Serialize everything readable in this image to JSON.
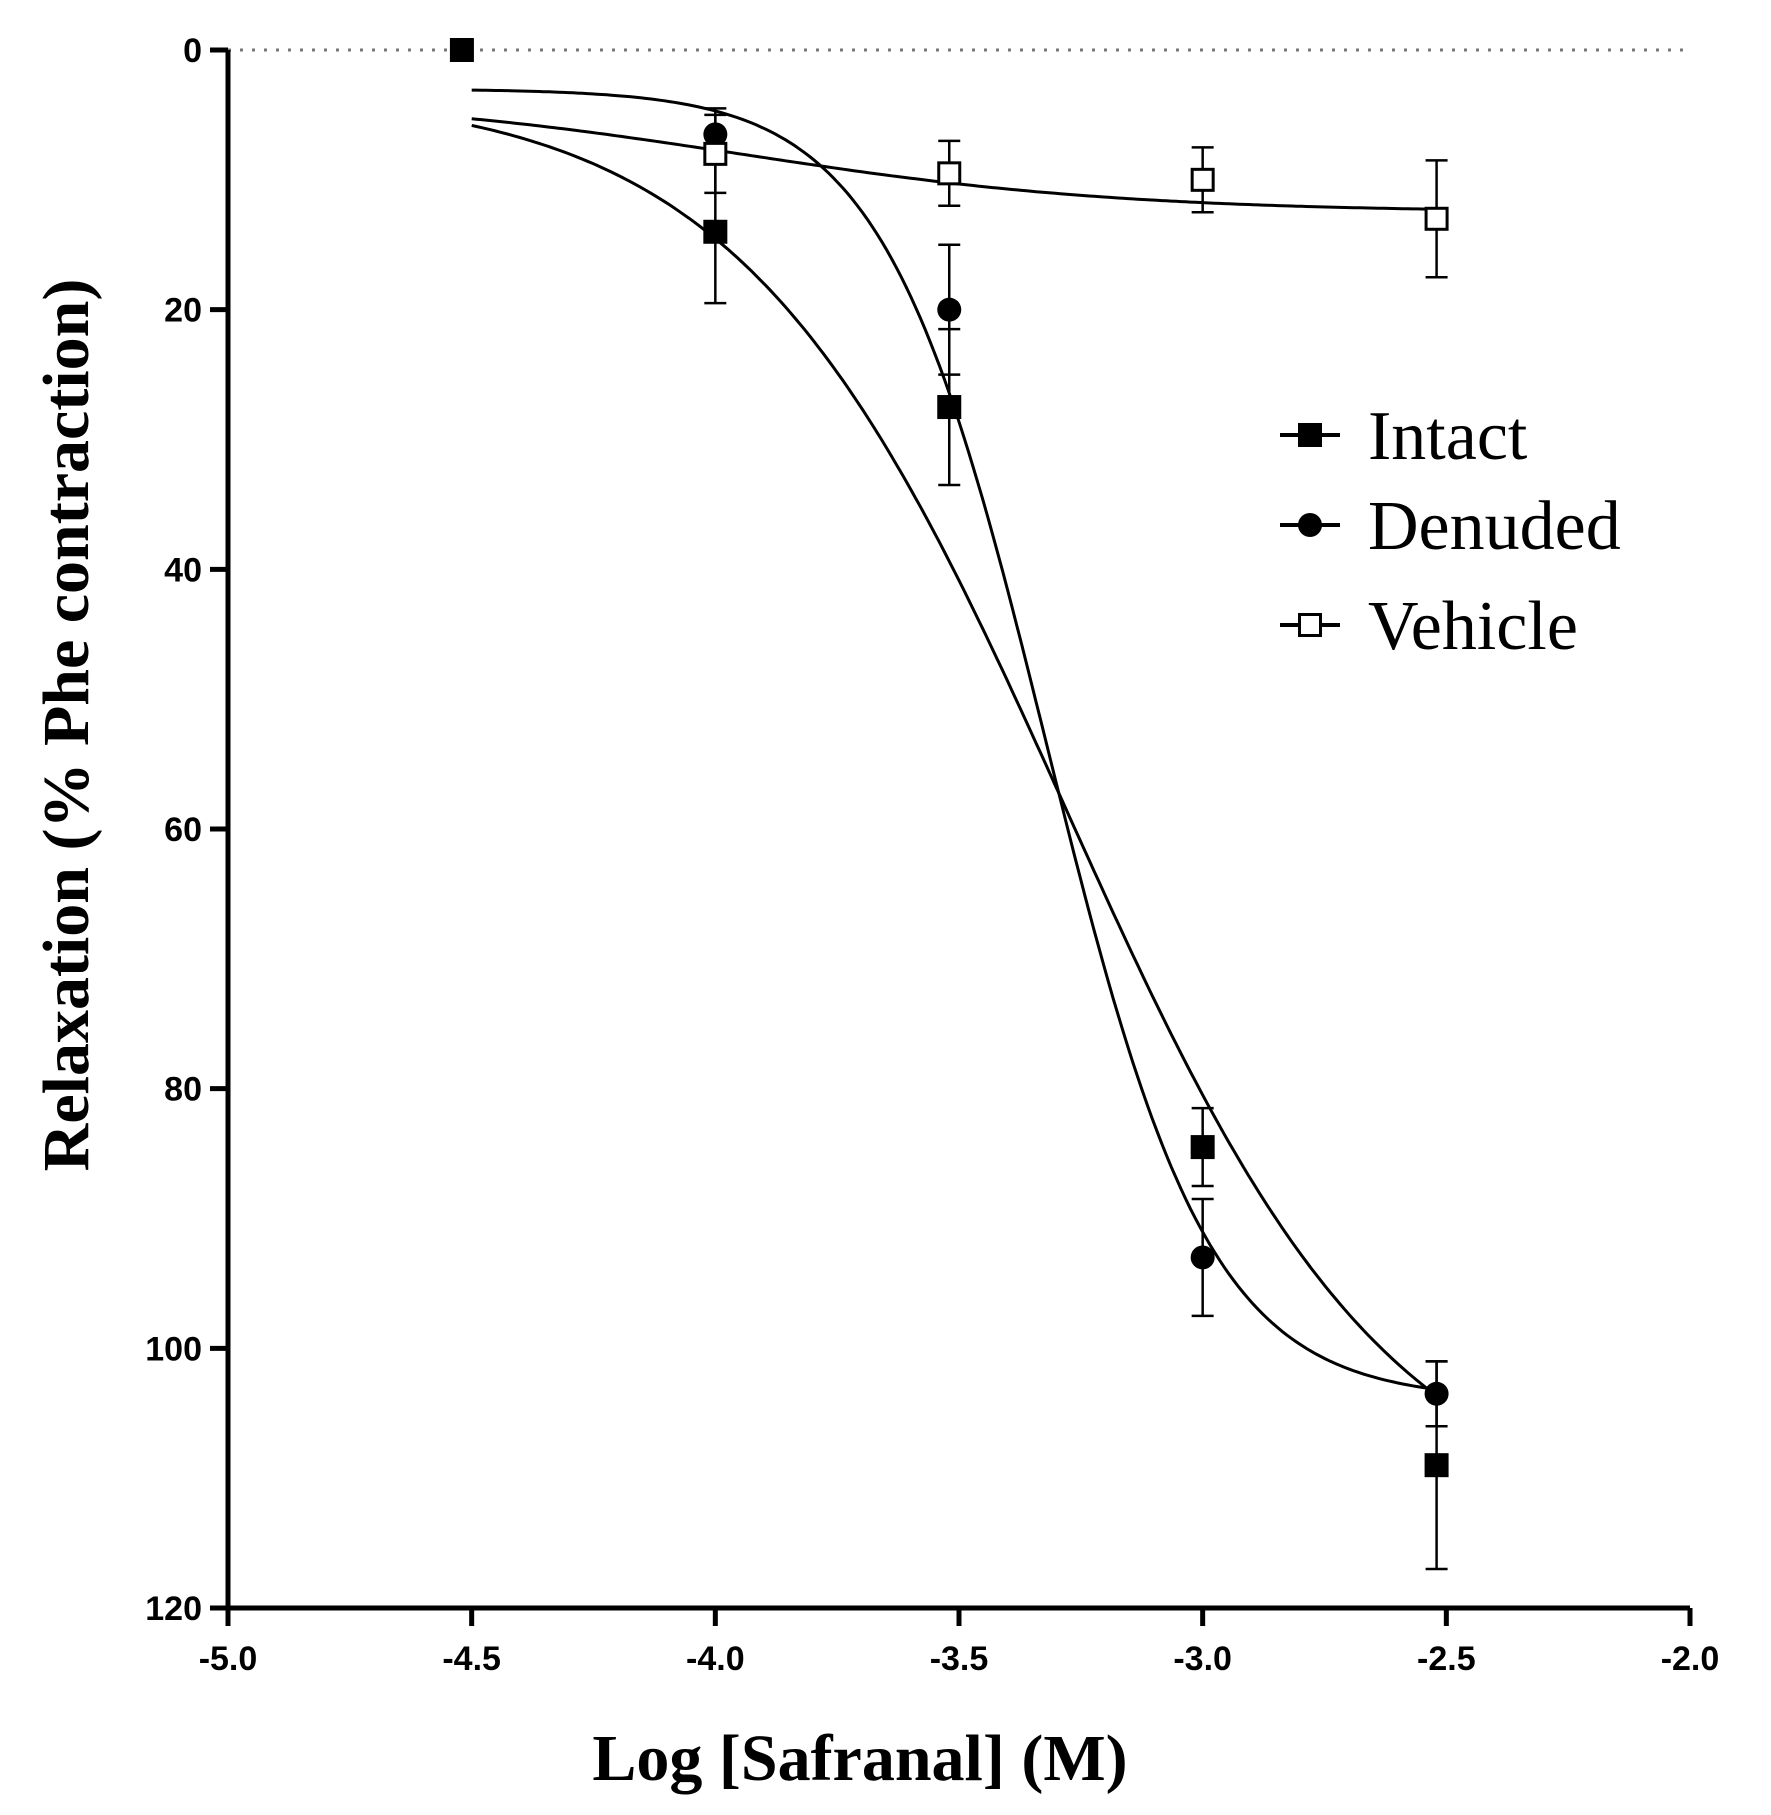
{
  "chart_data": {
    "type": "scatter",
    "title": "",
    "xlabel": "Log [Safranal] (M)",
    "ylabel": "Relaxation (% Phe contraction)",
    "xlim": [
      -5.0,
      -2.0
    ],
    "ylim": [
      0,
      120
    ],
    "y_inverted": true,
    "x_ticks": [
      -5.0,
      -4.5,
      -4.0,
      -3.5,
      -3.0,
      -2.5,
      -2.0
    ],
    "x_tick_labels": [
      "-5.0",
      "-4.5",
      "-4.0",
      "-3.5",
      "-3.0",
      "-2.5",
      "-2.0"
    ],
    "y_ticks": [
      0,
      20,
      40,
      60,
      80,
      100,
      120
    ],
    "y_tick_labels": [
      "0",
      "20",
      "40",
      "60",
      "80",
      "100",
      "120"
    ],
    "reference_line": {
      "y": 0,
      "style": "dotted"
    },
    "legend": {
      "placement": "right-middle"
    },
    "series": [
      {
        "name": "Intact",
        "marker": "filled-square",
        "x": [
          -4.52,
          -4.0,
          -3.52,
          -3.0,
          -2.52
        ],
        "y": [
          0,
          14,
          27.5,
          84.5,
          109
        ],
        "err": [
          0,
          5.5,
          6,
          3,
          8
        ],
        "fit": {
          "bottom": 3,
          "top": 114,
          "logEC50": -3.28,
          "hill": 1.3
        }
      },
      {
        "name": "Denuded",
        "marker": "filled-circle",
        "x": [
          -4.0,
          -3.52,
          -3.0,
          -2.52
        ],
        "y": [
          6.5,
          20,
          93,
          103.5
        ],
        "err": [
          2,
          5,
          4.5,
          2.5
        ],
        "fit": {
          "bottom": 3,
          "top": 104,
          "logEC50": -3.32,
          "hill": 2.6
        }
      },
      {
        "name": "Vehicle",
        "marker": "open-square",
        "x": [
          -4.0,
          -3.52,
          -3.0,
          -2.52
        ],
        "y": [
          8,
          9.5,
          10,
          13
        ],
        "err": [
          3,
          2.5,
          2.5,
          4.5
        ],
        "fit": {
          "bottom": 3.5,
          "top": 12.5,
          "logEC50": -3.95,
          "hill": 1.1
        }
      }
    ]
  }
}
